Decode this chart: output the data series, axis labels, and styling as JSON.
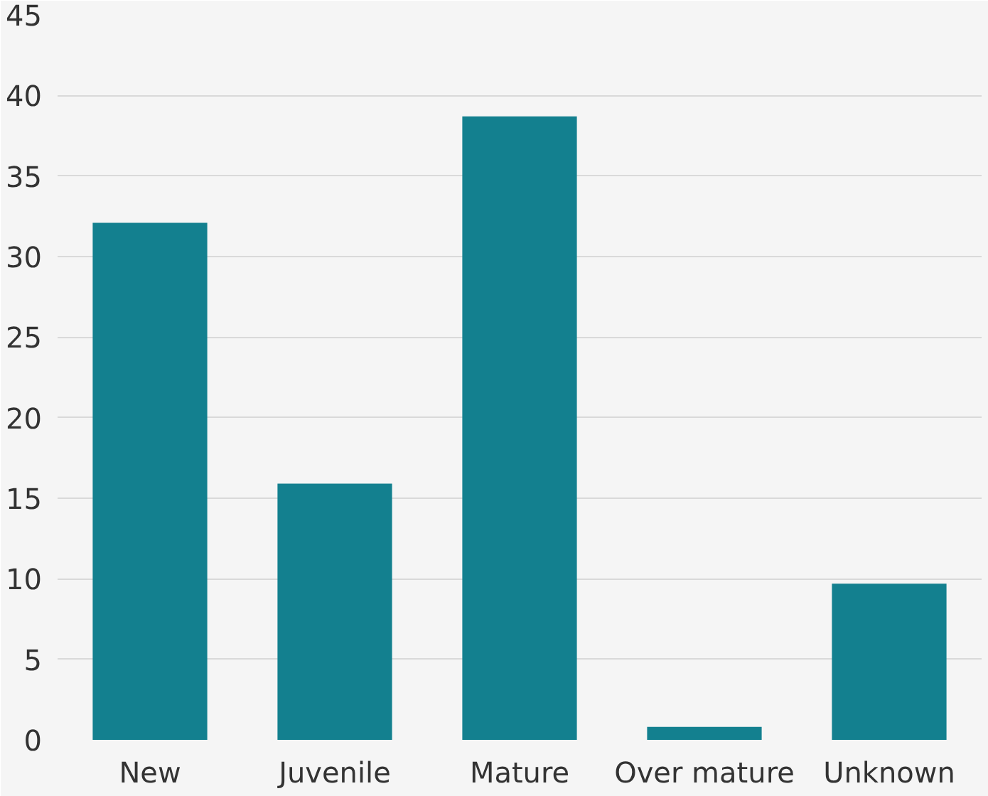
{
  "chart_data": {
    "type": "bar",
    "categories": [
      "New",
      "Juvenile",
      "Mature",
      "Over mature",
      "Unknown"
    ],
    "values": [
      32.1,
      15.9,
      38.7,
      0.8,
      9.7
    ],
    "color": "#13808f",
    "ylim": [
      0,
      45
    ],
    "yticks": [
      0,
      5,
      10,
      15,
      20,
      25,
      30,
      35,
      40,
      45
    ],
    "grid": "y"
  }
}
